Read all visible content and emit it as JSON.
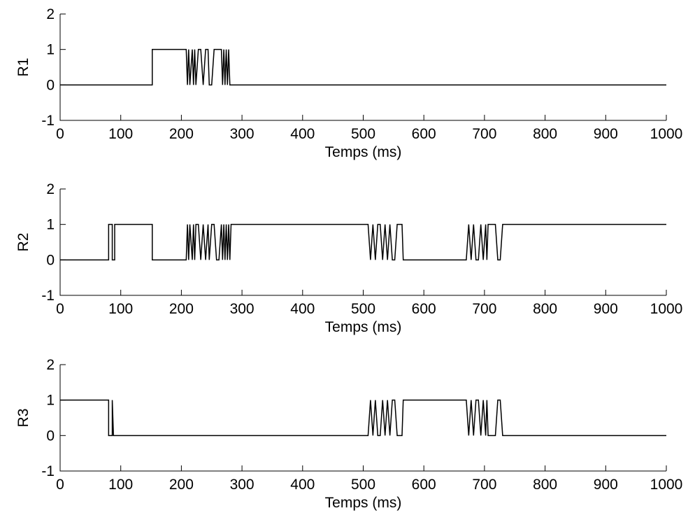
{
  "chart_data": [
    {
      "type": "line",
      "title": "",
      "xlabel": "Temps (ms)",
      "ylabel": "R1",
      "xlim": [
        0,
        1000
      ],
      "ylim": [
        -1,
        2
      ],
      "xticks": [
        0,
        100,
        200,
        300,
        400,
        500,
        600,
        700,
        800,
        900,
        1000
      ],
      "yticks": [
        -1,
        0,
        1,
        2
      ],
      "grid": false,
      "series": [
        {
          "x": [
            0,
            152,
            152,
            208,
            210,
            212,
            214,
            218,
            220,
            222,
            224,
            228,
            232,
            236,
            240,
            244,
            246,
            250,
            254,
            258,
            262,
            266,
            268,
            270,
            272,
            274,
            276,
            278,
            280,
            282,
            1000
          ],
          "y": [
            0,
            0,
            1,
            1,
            0,
            1,
            0,
            1,
            0,
            1,
            0,
            1,
            1,
            0,
            1,
            1,
            0,
            0,
            1,
            1,
            1,
            1,
            0,
            1,
            0,
            1,
            0,
            1,
            0,
            0,
            0
          ]
        }
      ]
    },
    {
      "type": "line",
      "title": "",
      "xlabel": "Temps (ms)",
      "ylabel": "R2",
      "xlim": [
        0,
        1000
      ],
      "ylim": [
        -1,
        2
      ],
      "xticks": [
        0,
        100,
        200,
        300,
        400,
        500,
        600,
        700,
        800,
        900,
        1000
      ],
      "yticks": [
        -1,
        0,
        1,
        2
      ],
      "grid": false,
      "series": [
        {
          "x": [
            0,
            80,
            80,
            86,
            86,
            90,
            90,
            152,
            152,
            208,
            210,
            212,
            214,
            218,
            220,
            222,
            224,
            228,
            232,
            236,
            240,
            244,
            246,
            250,
            254,
            258,
            262,
            266,
            268,
            270,
            272,
            274,
            276,
            278,
            280,
            282,
            508,
            512,
            516,
            520,
            524,
            528,
            532,
            536,
            540,
            544,
            548,
            552,
            556,
            560,
            564,
            566,
            670,
            674,
            678,
            682,
            686,
            690,
            694,
            698,
            702,
            704,
            706,
            710,
            714,
            718,
            722,
            726,
            730,
            734,
            1000
          ],
          "y": [
            0,
            0,
            1,
            1,
            0,
            0,
            1,
            1,
            0,
            0,
            1,
            0,
            1,
            0,
            1,
            0,
            1,
            1,
            0,
            1,
            0,
            1,
            0,
            1,
            1,
            0,
            0,
            1,
            0,
            1,
            0,
            1,
            0,
            1,
            0,
            1,
            1,
            0,
            1,
            0,
            1,
            1,
            0,
            1,
            0,
            1,
            0,
            0,
            1,
            1,
            1,
            0,
            0,
            1,
            0,
            1,
            0,
            0,
            1,
            0,
            1,
            0,
            1,
            1,
            1,
            1,
            0,
            0,
            1,
            1,
            1
          ]
        }
      ]
    },
    {
      "type": "line",
      "title": "",
      "xlabel": "Temps (ms)",
      "ylabel": "R3",
      "xlim": [
        0,
        1000
      ],
      "ylim": [
        -1,
        2
      ],
      "xticks": [
        0,
        100,
        200,
        300,
        400,
        500,
        600,
        700,
        800,
        900,
        1000
      ],
      "yticks": [
        -1,
        0,
        1,
        2
      ],
      "grid": false,
      "series": [
        {
          "x": [
            0,
            80,
            80,
            86,
            86,
            88,
            90,
            508,
            512,
            516,
            520,
            524,
            528,
            532,
            536,
            540,
            544,
            548,
            552,
            556,
            560,
            564,
            566,
            670,
            674,
            678,
            682,
            686,
            690,
            694,
            698,
            702,
            704,
            706,
            710,
            714,
            718,
            722,
            726,
            730,
            734,
            1000
          ],
          "y": [
            1,
            1,
            0,
            0,
            1,
            0,
            0,
            0,
            1,
            0,
            1,
            0,
            0,
            1,
            0,
            1,
            0,
            1,
            1,
            0,
            0,
            0,
            1,
            1,
            0,
            1,
            0,
            1,
            1,
            0,
            1,
            0,
            1,
            0,
            0,
            0,
            0,
            1,
            1,
            0,
            0,
            0
          ]
        }
      ]
    }
  ]
}
